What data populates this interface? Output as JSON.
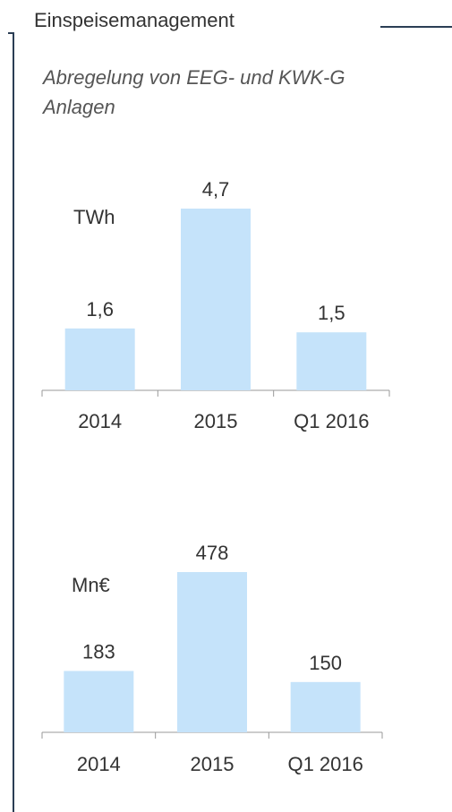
{
  "header": {
    "title": "Einspeisemanagement",
    "subtitle": "Abregelung von EEG- und KWK-G Anlagen"
  },
  "chart_data": [
    {
      "type": "bar",
      "unit_label": "TWh",
      "categories": [
        "2014",
        "2015",
        "Q1 2016"
      ],
      "values": [
        1.6,
        4.7,
        1.5
      ],
      "value_labels": [
        "1,6",
        "4,7",
        "1,5"
      ],
      "color": "#c5e3fa"
    },
    {
      "type": "bar",
      "unit_label": "Mn€",
      "categories": [
        "2014",
        "2015",
        "Q1 2016"
      ],
      "values": [
        183,
        478,
        150
      ],
      "color": "#c5e3fa"
    }
  ]
}
